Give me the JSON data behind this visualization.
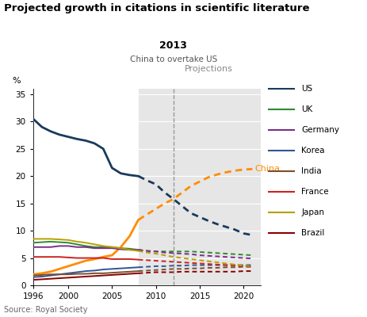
{
  "title": "Projected growth in citations in scientific literature",
  "ylabel": "%",
  "source": "Source: Royal Society",
  "annotation_year": "2013",
  "annotation_text": "China to overtake US",
  "projections_label": "Projections",
  "projection_start": 2008,
  "crossover_year": 2012,
  "xlim": [
    1996,
    2022
  ],
  "ylim": [
    0,
    36
  ],
  "yticks": [
    0,
    5,
    10,
    15,
    20,
    25,
    30,
    35
  ],
  "xticks": [
    1996,
    2000,
    2005,
    2010,
    2015,
    2020
  ],
  "series": {
    "US": {
      "color": "#1a3a5c",
      "solid": [
        [
          1996,
          30.5
        ],
        [
          1997,
          29.0
        ],
        [
          1998,
          28.2
        ],
        [
          1999,
          27.6
        ],
        [
          2000,
          27.2
        ],
        [
          2001,
          26.8
        ],
        [
          2002,
          26.5
        ],
        [
          2003,
          26.0
        ],
        [
          2004,
          25.0
        ],
        [
          2005,
          21.5
        ],
        [
          2006,
          20.5
        ],
        [
          2007,
          20.2
        ],
        [
          2008,
          20.0
        ]
      ],
      "dashed": [
        [
          2008,
          20.0
        ],
        [
          2009,
          19.2
        ],
        [
          2010,
          18.5
        ],
        [
          2011,
          17.0
        ],
        [
          2012,
          15.8
        ],
        [
          2013,
          14.5
        ],
        [
          2014,
          13.2
        ],
        [
          2015,
          12.5
        ],
        [
          2016,
          11.8
        ],
        [
          2017,
          11.2
        ],
        [
          2018,
          10.7
        ],
        [
          2019,
          10.2
        ],
        [
          2020,
          9.5
        ],
        [
          2021,
          9.2
        ]
      ]
    },
    "China": {
      "color": "#FF8C00",
      "solid": [
        [
          1996,
          2.0
        ],
        [
          1997,
          2.2
        ],
        [
          1998,
          2.5
        ],
        [
          1999,
          3.0
        ],
        [
          2000,
          3.5
        ],
        [
          2001,
          4.0
        ],
        [
          2002,
          4.5
        ],
        [
          2003,
          4.8
        ],
        [
          2004,
          5.2
        ],
        [
          2005,
          5.5
        ],
        [
          2006,
          7.0
        ],
        [
          2007,
          9.0
        ],
        [
          2008,
          12.0
        ]
      ],
      "dashed": [
        [
          2008,
          12.0
        ],
        [
          2009,
          13.0
        ],
        [
          2010,
          14.0
        ],
        [
          2011,
          15.0
        ],
        [
          2012,
          15.8
        ],
        [
          2013,
          17.0
        ],
        [
          2014,
          18.2
        ],
        [
          2015,
          19.0
        ],
        [
          2016,
          19.8
        ],
        [
          2017,
          20.3
        ],
        [
          2018,
          20.7
        ],
        [
          2019,
          21.0
        ],
        [
          2020,
          21.2
        ],
        [
          2021,
          21.3
        ]
      ]
    },
    "UK": {
      "color": "#2e8b2e",
      "solid": [
        [
          1996,
          7.8
        ],
        [
          1997,
          7.9
        ],
        [
          1998,
          8.0
        ],
        [
          1999,
          7.9
        ],
        [
          2000,
          7.8
        ],
        [
          2001,
          7.5
        ],
        [
          2002,
          7.2
        ],
        [
          2003,
          7.0
        ],
        [
          2004,
          7.0
        ],
        [
          2005,
          7.0
        ],
        [
          2006,
          6.8
        ],
        [
          2007,
          6.7
        ],
        [
          2008,
          6.5
        ]
      ],
      "dashed": [
        [
          2008,
          6.5
        ],
        [
          2009,
          6.3
        ],
        [
          2010,
          6.2
        ],
        [
          2011,
          6.2
        ],
        [
          2012,
          6.2
        ],
        [
          2013,
          6.2
        ],
        [
          2014,
          6.2
        ],
        [
          2015,
          6.1
        ],
        [
          2016,
          6.0
        ],
        [
          2017,
          5.9
        ],
        [
          2018,
          5.8
        ],
        [
          2019,
          5.7
        ],
        [
          2020,
          5.6
        ],
        [
          2021,
          5.5
        ]
      ]
    },
    "Germany": {
      "color": "#7b2d8b",
      "solid": [
        [
          1996,
          7.0
        ],
        [
          1997,
          7.0
        ],
        [
          1998,
          7.0
        ],
        [
          1999,
          7.2
        ],
        [
          2000,
          7.2
        ],
        [
          2001,
          7.0
        ],
        [
          2002,
          7.0
        ],
        [
          2003,
          6.8
        ],
        [
          2004,
          6.8
        ],
        [
          2005,
          6.8
        ],
        [
          2006,
          6.6
        ],
        [
          2007,
          6.5
        ],
        [
          2008,
          6.5
        ]
      ],
      "dashed": [
        [
          2008,
          6.5
        ],
        [
          2009,
          6.3
        ],
        [
          2010,
          6.2
        ],
        [
          2011,
          6.0
        ],
        [
          2012,
          5.9
        ],
        [
          2013,
          5.8
        ],
        [
          2014,
          5.7
        ],
        [
          2015,
          5.5
        ],
        [
          2016,
          5.4
        ],
        [
          2017,
          5.3
        ],
        [
          2018,
          5.2
        ],
        [
          2019,
          5.1
        ],
        [
          2020,
          5.0
        ],
        [
          2021,
          4.9
        ]
      ]
    },
    "Korea": {
      "color": "#2f5597",
      "solid": [
        [
          1996,
          1.5
        ],
        [
          1997,
          1.6
        ],
        [
          1998,
          1.8
        ],
        [
          1999,
          2.0
        ],
        [
          2000,
          2.2
        ],
        [
          2001,
          2.4
        ],
        [
          2002,
          2.6
        ],
        [
          2003,
          2.7
        ],
        [
          2004,
          2.9
        ],
        [
          2005,
          3.0
        ],
        [
          2006,
          3.1
        ],
        [
          2007,
          3.2
        ],
        [
          2008,
          3.3
        ]
      ],
      "dashed": [
        [
          2008,
          3.3
        ],
        [
          2009,
          3.4
        ],
        [
          2010,
          3.5
        ],
        [
          2011,
          3.5
        ],
        [
          2012,
          3.6
        ],
        [
          2013,
          3.6
        ],
        [
          2014,
          3.7
        ],
        [
          2015,
          3.7
        ],
        [
          2016,
          3.7
        ],
        [
          2017,
          3.7
        ],
        [
          2018,
          3.7
        ],
        [
          2019,
          3.7
        ],
        [
          2020,
          3.7
        ],
        [
          2021,
          3.7
        ]
      ]
    },
    "India": {
      "color": "#7a4f2e",
      "solid": [
        [
          1996,
          1.8
        ],
        [
          1997,
          1.9
        ],
        [
          1998,
          2.0
        ],
        [
          1999,
          2.0
        ],
        [
          2000,
          2.0
        ],
        [
          2001,
          2.1
        ],
        [
          2002,
          2.1
        ],
        [
          2003,
          2.2
        ],
        [
          2004,
          2.2
        ],
        [
          2005,
          2.3
        ],
        [
          2006,
          2.4
        ],
        [
          2007,
          2.5
        ],
        [
          2008,
          2.6
        ]
      ],
      "dashed": [
        [
          2008,
          2.6
        ],
        [
          2009,
          2.7
        ],
        [
          2010,
          2.8
        ],
        [
          2011,
          2.9
        ],
        [
          2012,
          3.0
        ],
        [
          2013,
          3.0
        ],
        [
          2014,
          3.1
        ],
        [
          2015,
          3.1
        ],
        [
          2016,
          3.2
        ],
        [
          2017,
          3.2
        ],
        [
          2018,
          3.3
        ],
        [
          2019,
          3.3
        ],
        [
          2020,
          3.4
        ],
        [
          2021,
          3.4
        ]
      ]
    },
    "France": {
      "color": "#cc2222",
      "solid": [
        [
          1996,
          5.2
        ],
        [
          1997,
          5.2
        ],
        [
          1998,
          5.2
        ],
        [
          1999,
          5.2
        ],
        [
          2000,
          5.1
        ],
        [
          2001,
          5.0
        ],
        [
          2002,
          5.0
        ],
        [
          2003,
          5.0
        ],
        [
          2004,
          5.0
        ],
        [
          2005,
          4.8
        ],
        [
          2006,
          4.8
        ],
        [
          2007,
          4.8
        ],
        [
          2008,
          4.7
        ]
      ],
      "dashed": [
        [
          2008,
          4.7
        ],
        [
          2009,
          4.6
        ],
        [
          2010,
          4.5
        ],
        [
          2011,
          4.4
        ],
        [
          2012,
          4.3
        ],
        [
          2013,
          4.2
        ],
        [
          2014,
          4.1
        ],
        [
          2015,
          4.0
        ],
        [
          2016,
          3.9
        ],
        [
          2017,
          3.8
        ],
        [
          2018,
          3.7
        ],
        [
          2019,
          3.6
        ],
        [
          2020,
          3.5
        ],
        [
          2021,
          3.4
        ]
      ]
    },
    "Japan": {
      "color": "#b8a000",
      "solid": [
        [
          1996,
          8.5
        ],
        [
          1997,
          8.5
        ],
        [
          1998,
          8.5
        ],
        [
          1999,
          8.4
        ],
        [
          2000,
          8.3
        ],
        [
          2001,
          8.0
        ],
        [
          2002,
          7.8
        ],
        [
          2003,
          7.5
        ],
        [
          2004,
          7.2
        ],
        [
          2005,
          7.0
        ],
        [
          2006,
          6.8
        ],
        [
          2007,
          6.5
        ],
        [
          2008,
          6.3
        ]
      ],
      "dashed": [
        [
          2008,
          6.3
        ],
        [
          2009,
          6.0
        ],
        [
          2010,
          5.8
        ],
        [
          2011,
          5.5
        ],
        [
          2012,
          5.2
        ],
        [
          2013,
          5.0
        ],
        [
          2014,
          4.8
        ],
        [
          2015,
          4.6
        ],
        [
          2016,
          4.4
        ],
        [
          2017,
          4.2
        ],
        [
          2018,
          4.0
        ],
        [
          2019,
          3.8
        ],
        [
          2020,
          3.6
        ],
        [
          2021,
          3.5
        ]
      ]
    },
    "Brazil": {
      "color": "#8b0000",
      "solid": [
        [
          1996,
          1.0
        ],
        [
          1997,
          1.1
        ],
        [
          1998,
          1.2
        ],
        [
          1999,
          1.3
        ],
        [
          2000,
          1.4
        ],
        [
          2001,
          1.5
        ],
        [
          2002,
          1.6
        ],
        [
          2003,
          1.7
        ],
        [
          2004,
          1.8
        ],
        [
          2005,
          1.9
        ],
        [
          2006,
          2.0
        ],
        [
          2007,
          2.1
        ],
        [
          2008,
          2.2
        ]
      ],
      "dashed": [
        [
          2008,
          2.2
        ],
        [
          2009,
          2.3
        ],
        [
          2010,
          2.4
        ],
        [
          2011,
          2.4
        ],
        [
          2012,
          2.4
        ],
        [
          2013,
          2.5
        ],
        [
          2014,
          2.5
        ],
        [
          2015,
          2.5
        ],
        [
          2016,
          2.5
        ],
        [
          2017,
          2.5
        ],
        [
          2018,
          2.5
        ],
        [
          2019,
          2.5
        ],
        [
          2020,
          2.6
        ],
        [
          2021,
          2.6
        ]
      ]
    }
  },
  "legend_order": [
    "US",
    "UK",
    "Germany",
    "Korea",
    "India",
    "France",
    "Japan",
    "Brazil"
  ],
  "background_color": "#ffffff",
  "shading_color": "#e6e6e6"
}
